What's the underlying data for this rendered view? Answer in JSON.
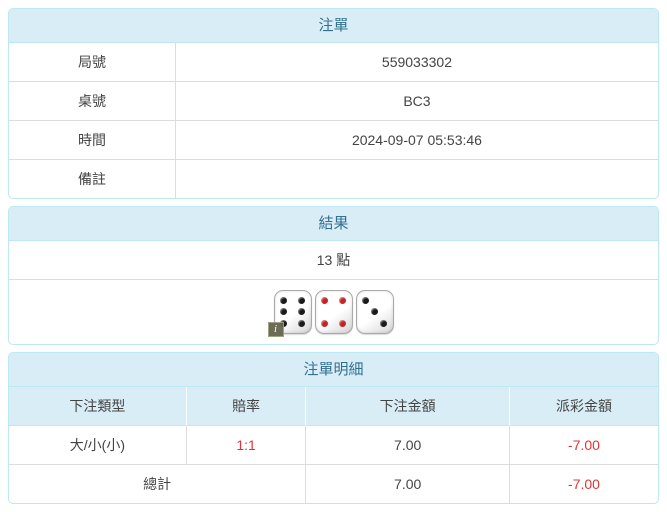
{
  "colors": {
    "panel_header_bg": "#d9edf7",
    "panel_header_text": "#31708f",
    "panel_border": "#bce8f1",
    "cell_border": "#dddddd",
    "body_text": "#444444",
    "negative_red": "#e03535",
    "die_pip_black": "#1a1a1a",
    "die_pip_red": "#c22525",
    "info_badge_bg": "#66664d"
  },
  "bet_panel": {
    "title": "注單",
    "rows": [
      {
        "label": "局號",
        "value": "559033302"
      },
      {
        "label": "桌號",
        "value": "BC3"
      },
      {
        "label": "時間",
        "value": "2024-09-07 05:53:46"
      },
      {
        "label": "備註",
        "value": ""
      }
    ]
  },
  "result_panel": {
    "title": "結果",
    "points": "13 點",
    "dice": [
      {
        "value": 6,
        "color": "black",
        "badge": "i"
      },
      {
        "value": 4,
        "color": "red"
      },
      {
        "value": 3,
        "color": "black"
      }
    ]
  },
  "detail_panel": {
    "title": "注單明細",
    "columns": [
      "下注類型",
      "賠率",
      "下注金額",
      "派彩金額"
    ],
    "rows": [
      {
        "type": "大/小(小)",
        "odds": "1:1",
        "bet_amount": "7.00",
        "payout": "-7.00"
      }
    ],
    "total": {
      "label": "總計",
      "bet_amount": "7.00",
      "payout": "-7.00"
    }
  }
}
